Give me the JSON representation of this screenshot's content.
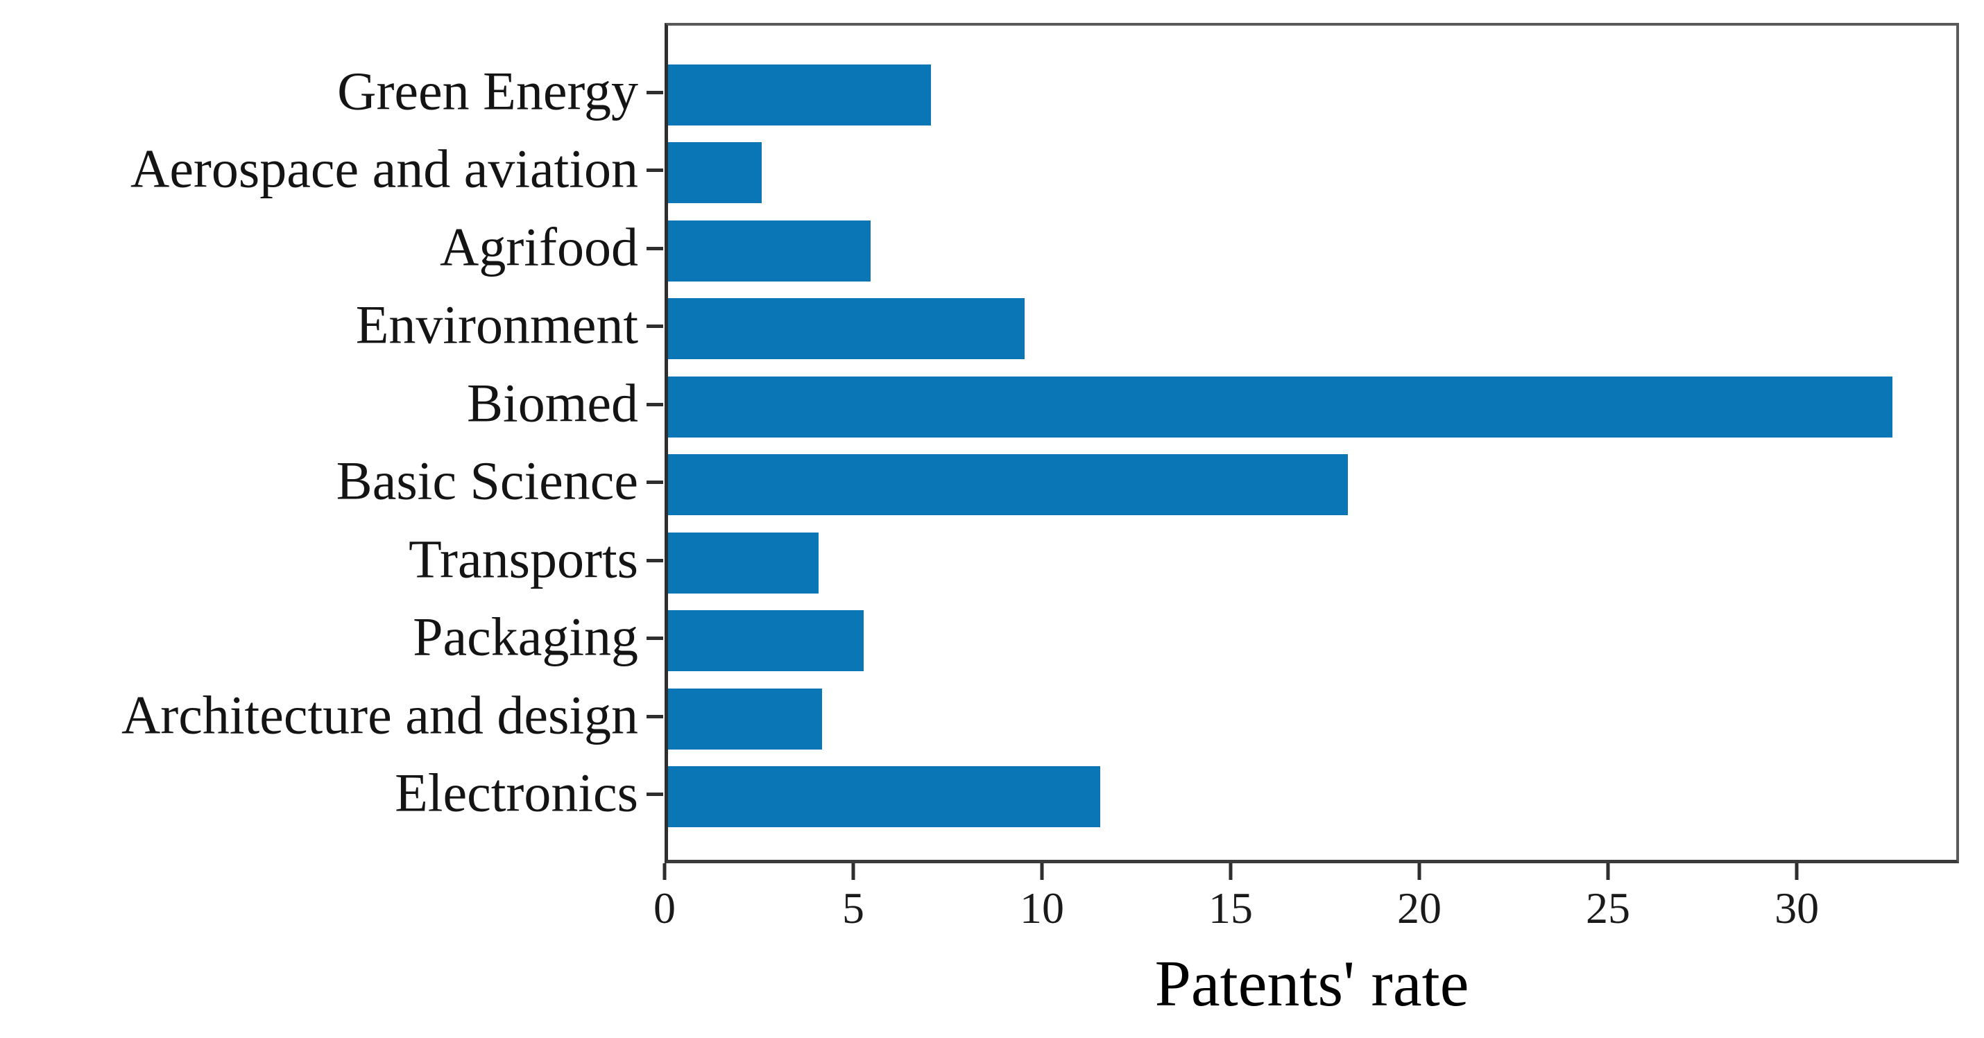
{
  "chart_data": {
    "type": "bar",
    "orientation": "horizontal",
    "title": "",
    "xlabel": "Patents' rate",
    "ylabel": "",
    "categories": [
      "Green Energy",
      "Aerospace and aviation",
      "Agrifood",
      "Environment",
      "Biomed",
      "Basic Science",
      "Transports",
      "Packaging",
      "Architecture and design",
      "Electronics"
    ],
    "values": [
      7.0,
      2.5,
      5.4,
      9.5,
      32.6,
      18.1,
      4.0,
      5.2,
      4.1,
      11.5
    ],
    "xlim": [
      0,
      34.3
    ],
    "xticks": [
      0,
      5,
      10,
      15,
      20,
      25,
      30
    ],
    "grid": false,
    "legend": false,
    "bar_color": "#0b76b5",
    "axis_color": "#2e2e2e",
    "text_color": "#141414"
  }
}
